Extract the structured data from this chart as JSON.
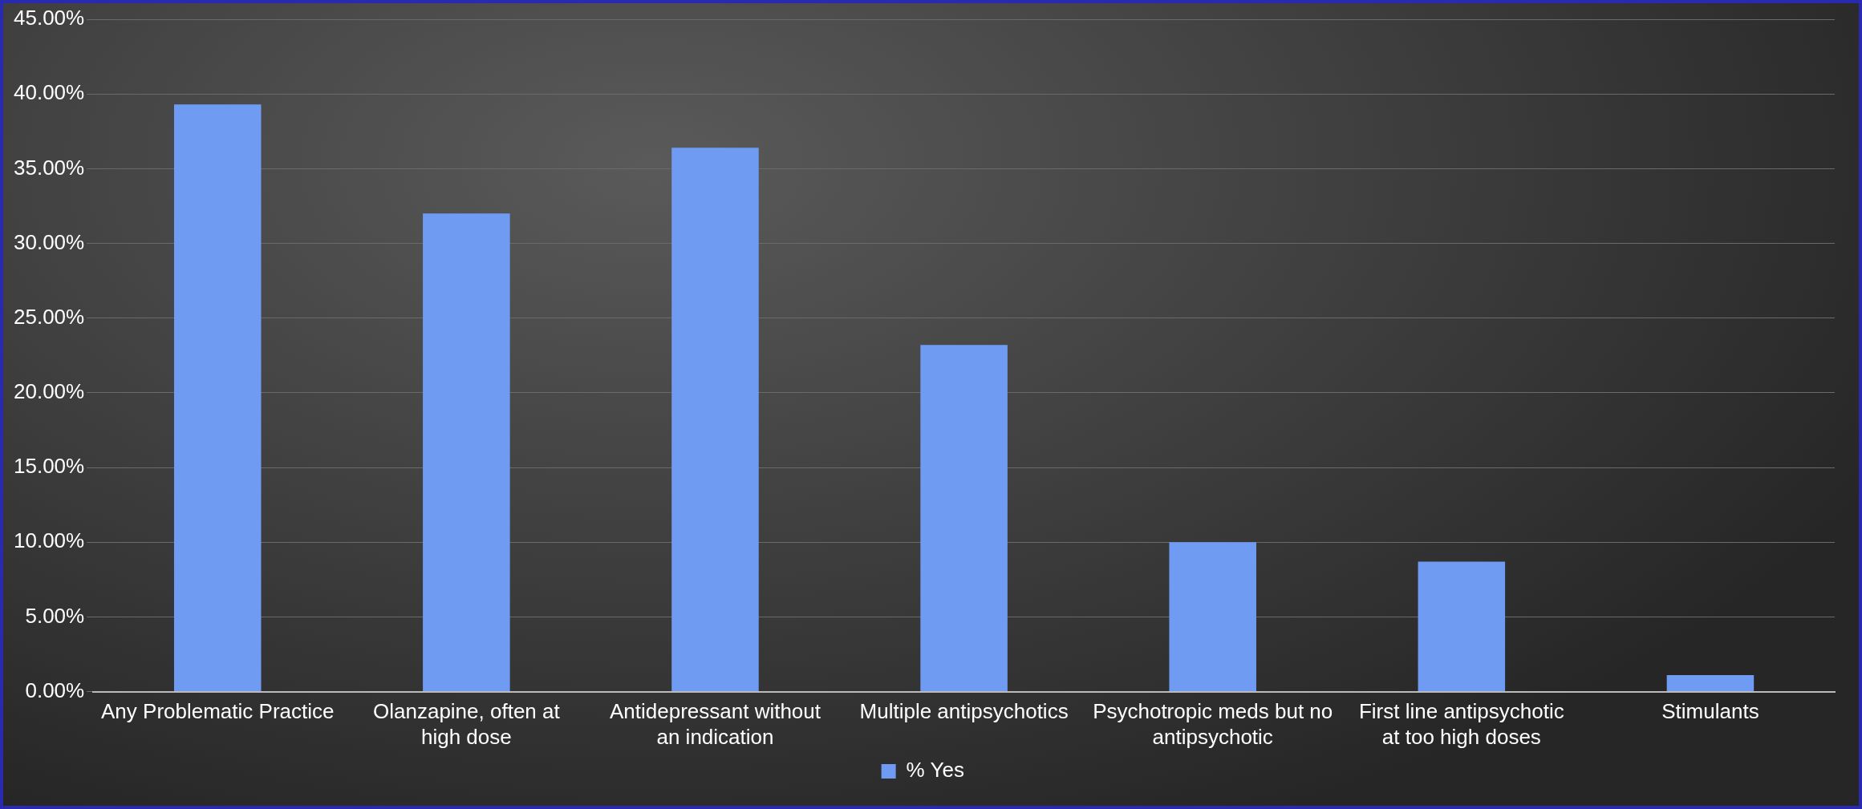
{
  "chart_data": {
    "type": "bar",
    "categories": [
      "Any Problematic Practice",
      "Olanzapine, often at high dose",
      "Antidepressant without an indication",
      "Multiple antipsychotics",
      "Psychotropic meds but no antipsychotic",
      "First line antipsychotic at too high doses",
      "Stimulants"
    ],
    "series": [
      {
        "name": "% Yes",
        "color": "#6f9cf2",
        "values": [
          39.3,
          32.0,
          36.4,
          23.2,
          10.0,
          8.7,
          1.1
        ]
      }
    ],
    "ylim": [
      0,
      45
    ],
    "yticks": [
      {
        "value": 0,
        "label": "0.00%"
      },
      {
        "value": 5,
        "label": "5.00%"
      },
      {
        "value": 10,
        "label": "10.00%"
      },
      {
        "value": 15,
        "label": "15.00%"
      },
      {
        "value": 20,
        "label": "20.00%"
      },
      {
        "value": 25,
        "label": "25.00%"
      },
      {
        "value": 30,
        "label": "30.00%"
      },
      {
        "value": 35,
        "label": "35.00%"
      },
      {
        "value": 40,
        "label": "40.00%"
      },
      {
        "value": 45,
        "label": "45.00%"
      }
    ],
    "grid": "y",
    "legend": "bottom"
  }
}
